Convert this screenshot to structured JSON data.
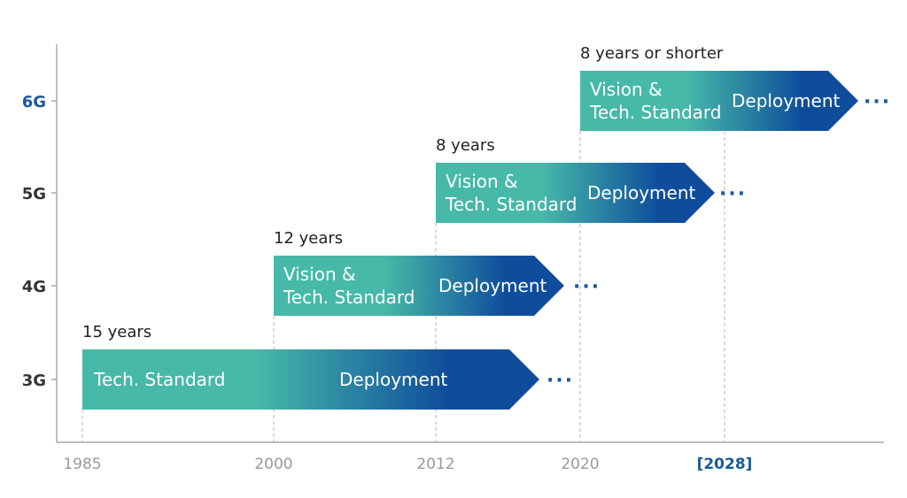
{
  "colors": {
    "teal": "#46b9a8",
    "blue": "#0f4d9c",
    "gen_label": "#333333",
    "gen_label_highlight": "#1a5a9a",
    "year_label": "#9a9a9a",
    "year_label_highlight": "#1a5a9a",
    "axis": "#a9a9a9",
    "guide": "#b5b5b5",
    "dots": "#1a5a9a",
    "duration_text": "#222222"
  },
  "y_axis": {
    "generations": [
      {
        "label": "3G",
        "highlight": false
      },
      {
        "label": "4G",
        "highlight": false
      },
      {
        "label": "5G",
        "highlight": false
      },
      {
        "label": "6G",
        "highlight": true
      }
    ]
  },
  "x_axis": {
    "ticks": [
      {
        "label": "1985",
        "highlight": false
      },
      {
        "label": "2000",
        "highlight": false
      },
      {
        "label": "2012",
        "highlight": false
      },
      {
        "label": "2020",
        "highlight": false
      },
      {
        "label": "[2028]",
        "highlight": true
      }
    ]
  },
  "bars": [
    {
      "generation": "3G",
      "start_year": "1985",
      "duration": "15 years",
      "phase1_lines": [
        "Tech. Standard"
      ],
      "phase2": "Deployment",
      "continuation": "···"
    },
    {
      "generation": "4G",
      "start_year": "2000",
      "duration": "12 years",
      "phase1_lines": [
        "Vision &",
        "Tech. Standard"
      ],
      "phase2": "Deployment",
      "continuation": "···"
    },
    {
      "generation": "5G",
      "start_year": "2012",
      "duration": "8 years",
      "phase1_lines": [
        "Vision &",
        "Tech. Standard"
      ],
      "phase2": "Deployment",
      "continuation": "···"
    },
    {
      "generation": "6G",
      "start_year": "2020",
      "duration": "8 years or shorter",
      "phase1_lines": [
        "Vision &",
        "Tech. Standard"
      ],
      "phase2": "Deployment",
      "continuation": "···"
    }
  ]
}
